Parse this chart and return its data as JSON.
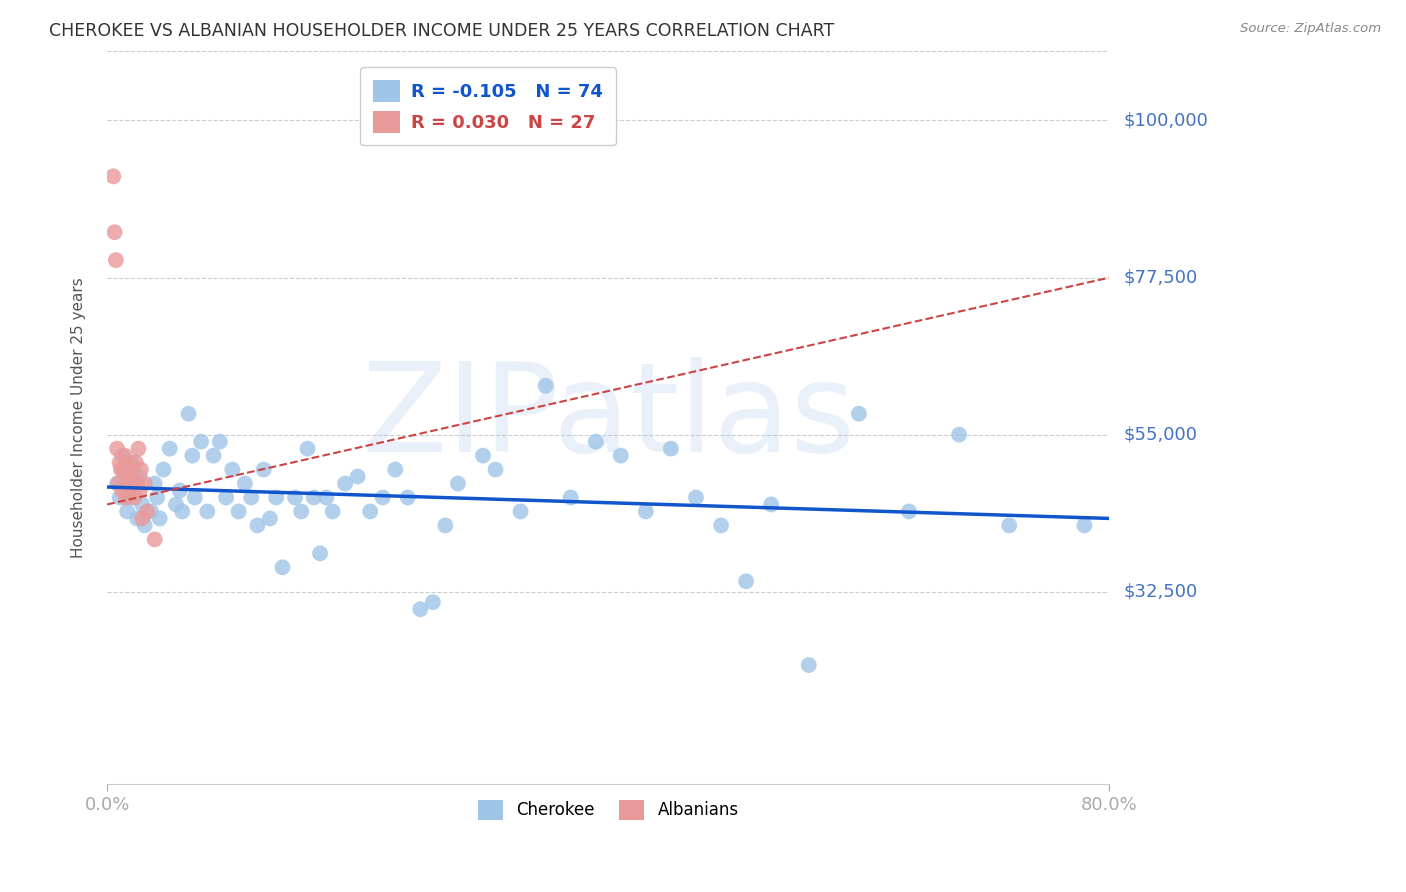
{
  "title": "CHEROKEE VS ALBANIAN HOUSEHOLDER INCOME UNDER 25 YEARS CORRELATION CHART",
  "source": "Source: ZipAtlas.com",
  "ylabel": "Householder Income Under 25 years",
  "xlim": [
    0.0,
    0.8
  ],
  "ylim": [
    5000,
    110000
  ],
  "yticks": [
    32500,
    55000,
    77500,
    100000
  ],
  "ytick_labels": [
    "$32,500",
    "$55,000",
    "$77,500",
    "$100,000"
  ],
  "xtick_positions": [
    0.0,
    0.8
  ],
  "xtick_labels": [
    "0.0%",
    "80.0%"
  ],
  "cherokee_color": "#9fc5e8",
  "albanian_color": "#ea9999",
  "cherokee_line_color": "#1155cc",
  "albanian_line_color": "#cc4444",
  "legend_cherokee_R": "-0.105",
  "legend_cherokee_N": "74",
  "legend_albanian_R": "0.030",
  "legend_albanian_N": "27",
  "watermark": "ZIPatlas",
  "watermark_color": "#aec6e8",
  "background_color": "#ffffff",
  "grid_color": "#cccccc",
  "title_color": "#333333",
  "ytick_label_color": "#4472c4",
  "cherokee_x": [
    0.008,
    0.01,
    0.012,
    0.014,
    0.016,
    0.018,
    0.02,
    0.022,
    0.024,
    0.026,
    0.028,
    0.03,
    0.035,
    0.038,
    0.04,
    0.042,
    0.045,
    0.05,
    0.055,
    0.058,
    0.06,
    0.065,
    0.068,
    0.07,
    0.075,
    0.08,
    0.085,
    0.09,
    0.095,
    0.1,
    0.105,
    0.11,
    0.115,
    0.12,
    0.125,
    0.13,
    0.135,
    0.14,
    0.15,
    0.155,
    0.16,
    0.165,
    0.17,
    0.175,
    0.18,
    0.19,
    0.2,
    0.21,
    0.22,
    0.23,
    0.24,
    0.25,
    0.26,
    0.27,
    0.28,
    0.3,
    0.31,
    0.33,
    0.35,
    0.37,
    0.39,
    0.41,
    0.43,
    0.45,
    0.47,
    0.49,
    0.51,
    0.53,
    0.56,
    0.6,
    0.64,
    0.68,
    0.72,
    0.78
  ],
  "cherokee_y": [
    48000,
    46000,
    52000,
    50000,
    44000,
    46000,
    51000,
    47000,
    43000,
    49000,
    45000,
    42000,
    44000,
    48000,
    46000,
    43000,
    50000,
    53000,
    45000,
    47000,
    44000,
    58000,
    52000,
    46000,
    54000,
    44000,
    52000,
    54000,
    46000,
    50000,
    44000,
    48000,
    46000,
    42000,
    50000,
    43000,
    46000,
    36000,
    46000,
    44000,
    53000,
    46000,
    38000,
    46000,
    44000,
    48000,
    49000,
    44000,
    46000,
    50000,
    46000,
    30000,
    31000,
    42000,
    48000,
    52000,
    50000,
    44000,
    62000,
    46000,
    54000,
    52000,
    44000,
    53000,
    46000,
    42000,
    34000,
    45000,
    22000,
    58000,
    44000,
    55000,
    42000,
    42000
  ],
  "albanian_x": [
    0.005,
    0.006,
    0.007,
    0.008,
    0.009,
    0.01,
    0.011,
    0.012,
    0.013,
    0.014,
    0.015,
    0.016,
    0.017,
    0.018,
    0.019,
    0.02,
    0.021,
    0.022,
    0.023,
    0.024,
    0.025,
    0.026,
    0.027,
    0.028,
    0.03,
    0.032,
    0.038
  ],
  "albanian_y": [
    92000,
    84000,
    80000,
    53000,
    48000,
    51000,
    50000,
    47000,
    50000,
    52000,
    46000,
    48000,
    51000,
    49000,
    47000,
    50000,
    48000,
    46000,
    51000,
    48000,
    53000,
    47000,
    50000,
    43000,
    48000,
    44000,
    40000
  ],
  "cherokee_line_y0": 47500,
  "cherokee_line_y1": 43000,
  "albanian_line_y0": 45000,
  "albanian_line_y1": 77500
}
